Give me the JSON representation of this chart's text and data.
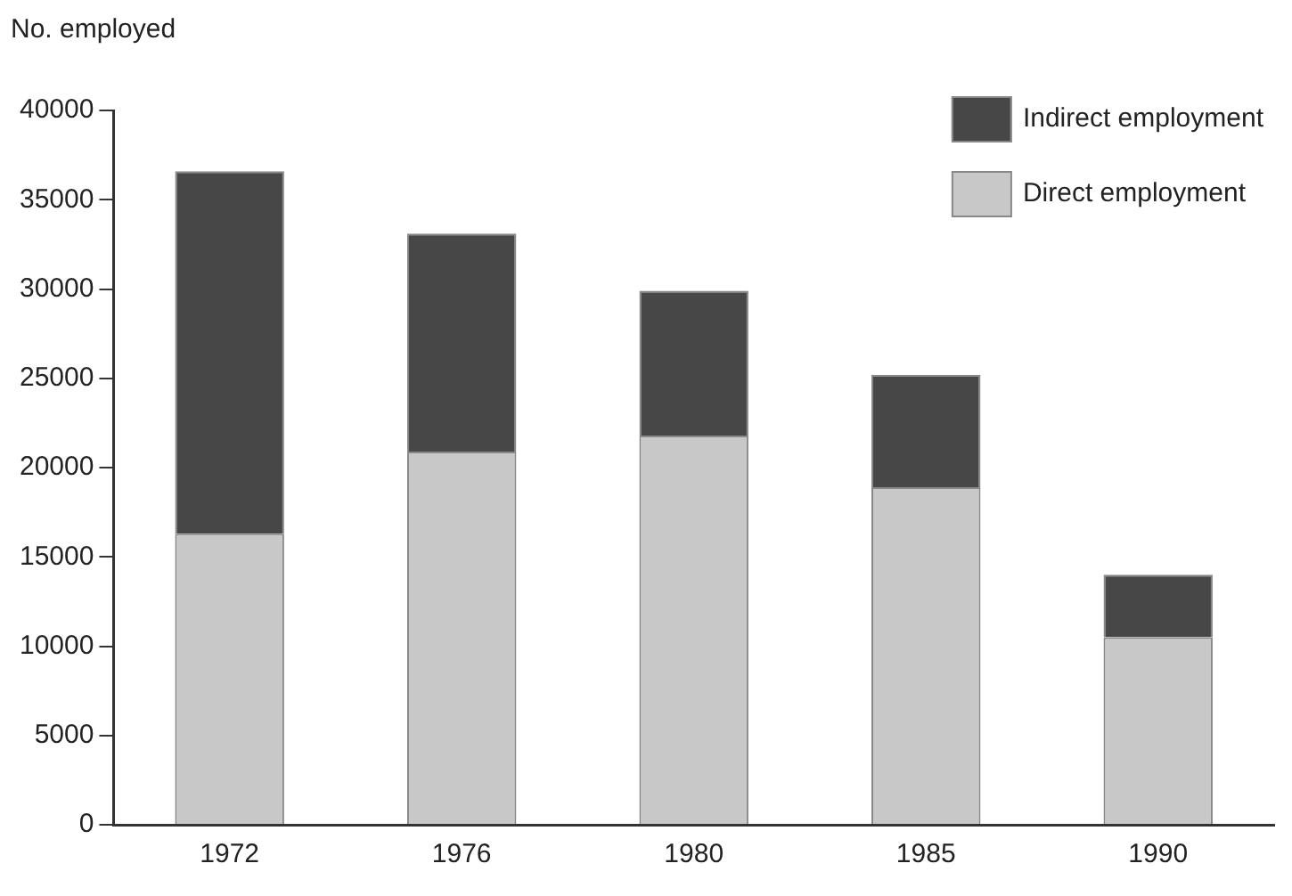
{
  "chart_data": {
    "type": "bar",
    "ylabel": "No. employed",
    "categories": [
      "1972",
      "1976",
      "1980",
      "1985",
      "1990"
    ],
    "stacked": true,
    "legend": "top right",
    "grid": false,
    "ylim": [
      0,
      40000
    ],
    "yticks": [
      0,
      5000,
      10000,
      15000,
      20000,
      25000,
      30000,
      35000,
      40000
    ],
    "series": [
      {
        "name": "Direct employment",
        "color": "#c8c8c8",
        "values": [
          16300,
          20900,
          21800,
          18900,
          10500
        ]
      },
      {
        "name": "Indirect employment",
        "color": "#474747",
        "values": [
          20300,
          12200,
          8100,
          6300,
          3500
        ]
      }
    ]
  }
}
